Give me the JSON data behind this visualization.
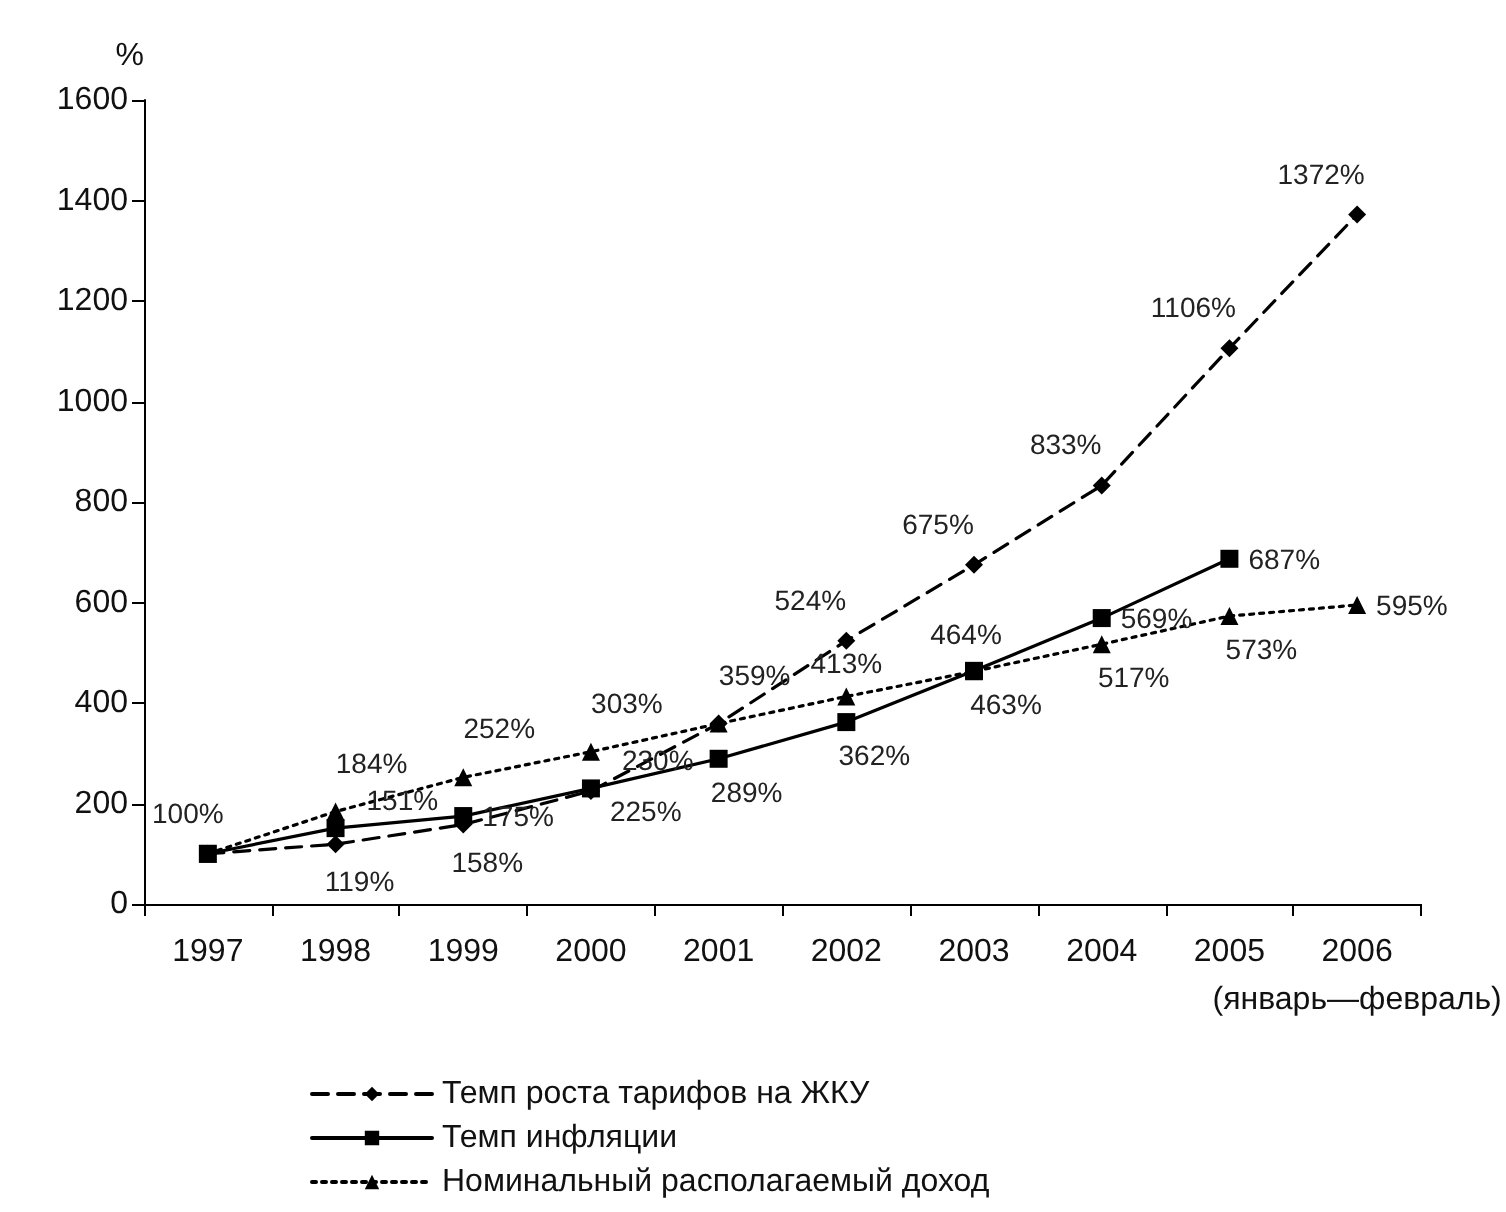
{
  "chart_data": {
    "type": "line",
    "ylabel": "%",
    "categories": [
      "1997",
      "1998",
      "1999",
      "2000",
      "2001",
      "2002",
      "2003",
      "2004",
      "2005",
      "2006\n(январь—февраль)"
    ],
    "ylim": [
      0,
      1600
    ],
    "yticks": [
      0,
      200,
      400,
      600,
      800,
      1000,
      1200,
      1400,
      1600
    ],
    "grid": false,
    "legend": "bottom",
    "series": [
      {
        "name": "Темп роста тарифов на ЖКУ",
        "color": "#000000",
        "marker": "diamond",
        "line_style": "dashed",
        "values": [
          100,
          119,
          158,
          225,
          359,
          524,
          675,
          833,
          1106,
          1372
        ],
        "value_labels": [
          "100%",
          "119%",
          "158%",
          "225%",
          null,
          "524%",
          "675%",
          "833%",
          "1106%",
          "1372%"
        ]
      },
      {
        "name": "Темп инфляции",
        "color": "#000000",
        "marker": "square",
        "line_style": "solid",
        "values": [
          100,
          151,
          175,
          230,
          289,
          362,
          464,
          569,
          687,
          null
        ],
        "value_labels": [
          null,
          "151%",
          "175%",
          "230%",
          "289%",
          "362%",
          "464%",
          "569%",
          "687%",
          null
        ]
      },
      {
        "name": "Номинальный располагаемый доход",
        "color": "#000000",
        "marker": "triangle",
        "line_style": "dotted",
        "values": [
          100,
          184,
          252,
          303,
          359,
          413,
          463,
          517,
          573,
          595
        ],
        "value_labels": [
          null,
          "184%",
          "252%",
          "303%",
          "359%",
          "413%",
          "463%",
          "517%",
          "573%",
          "595%"
        ]
      }
    ]
  }
}
